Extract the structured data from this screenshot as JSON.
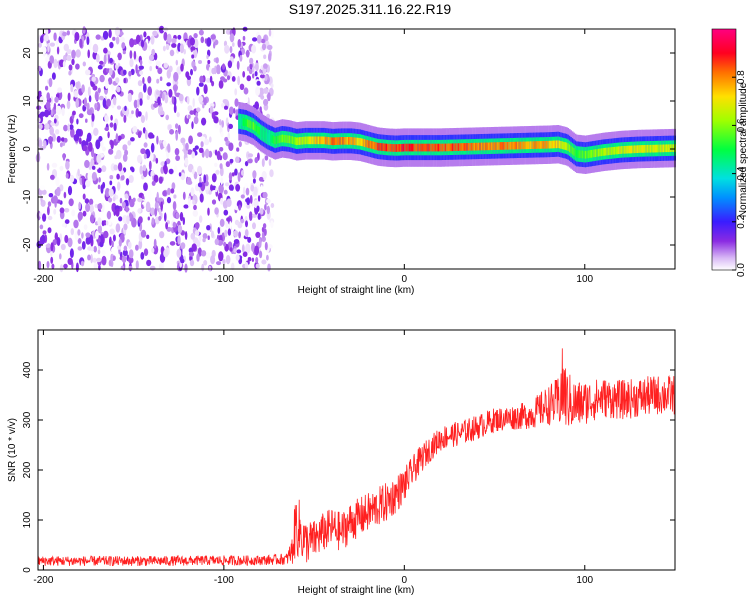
{
  "title": "S197.2025.311.16.22.R19",
  "chart_data": [
    {
      "type": "heatmap",
      "title": "S197.2025.311.16.22.R19",
      "xlabel": "Height of straight line (km)",
      "ylabel": "Frequency (Hz)",
      "xlim": [
        -203,
        150
      ],
      "ylim": [
        -25,
        25
      ],
      "x_ticks": [
        -200,
        -100,
        0,
        100
      ],
      "y_ticks": [
        -20,
        -10,
        0,
        10,
        20
      ],
      "colorbar": {
        "label": "Normalized spectral amplitude",
        "range": [
          0,
          1
        ],
        "ticks": [
          "0.0",
          "0.2",
          "0.4",
          "0.6",
          "0.8"
        ],
        "tick_values": [
          0.0,
          0.2,
          0.4,
          0.6,
          0.8
        ]
      },
      "noise_region": {
        "x_start": -203,
        "x_end": -73,
        "peak_amplitude": 0.15
      },
      "ridge": {
        "x": [
          -92,
          -88,
          -84,
          -80,
          -76,
          -72,
          -68,
          -64,
          -60,
          -55,
          -50,
          -45,
          -40,
          -35,
          -30,
          -25,
          -20,
          -15,
          -10,
          -5,
          0,
          5,
          10,
          20,
          30,
          40,
          50,
          60,
          70,
          80,
          85,
          90,
          95,
          100,
          110,
          120,
          130,
          140,
          150
        ],
        "freq": [
          5.8,
          5.5,
          4.8,
          3.5,
          2.5,
          1.8,
          2.2,
          2.0,
          1.6,
          1.8,
          1.8,
          1.8,
          1.6,
          1.7,
          1.7,
          1.5,
          1.0,
          0.5,
          0.3,
          0.2,
          0.3,
          0.3,
          0.3,
          0.3,
          0.4,
          0.5,
          0.6,
          0.7,
          0.8,
          0.9,
          1.0,
          0.5,
          -1.0,
          -1.2,
          -0.6,
          -0.2,
          0.0,
          0.1,
          0.2
        ],
        "amplitude": [
          0.45,
          0.55,
          0.6,
          0.5,
          0.45,
          0.55,
          0.6,
          0.6,
          0.65,
          0.7,
          0.75,
          0.8,
          0.85,
          0.85,
          0.8,
          0.75,
          0.85,
          0.9,
          0.9,
          0.92,
          0.92,
          0.9,
          0.9,
          0.9,
          0.88,
          0.85,
          0.85,
          0.85,
          0.82,
          0.8,
          0.75,
          0.65,
          0.55,
          0.6,
          0.65,
          0.7,
          0.72,
          0.7,
          0.7
        ]
      }
    },
    {
      "type": "line",
      "xlabel": "Height of straight line (km)",
      "ylabel": "SNR (10 * v/v)",
      "xlim": [
        -203,
        150
      ],
      "ylim": [
        0,
        480
      ],
      "x_ticks": [
        -200,
        -100,
        0,
        100
      ],
      "y_ticks": [
        0,
        100,
        200,
        300,
        400
      ],
      "color": "#ff2020",
      "series": [
        {
          "name": "SNR",
          "x": [
            -203,
            -190,
            -170,
            -150,
            -130,
            -110,
            -90,
            -75,
            -65,
            -62,
            -60,
            -55,
            -50,
            -45,
            -40,
            -35,
            -30,
            -25,
            -20,
            -15,
            -10,
            -5,
            0,
            5,
            10,
            15,
            20,
            25,
            30,
            40,
            50,
            60,
            70,
            75,
            80,
            85,
            88,
            90,
            95,
            100,
            110,
            120,
            130,
            140,
            150
          ],
          "y": [
            18,
            18,
            18,
            18,
            18,
            19,
            19,
            20,
            22,
            40,
            95,
            55,
            60,
            75,
            85,
            75,
            95,
            105,
            115,
            125,
            135,
            150,
            170,
            200,
            225,
            245,
            262,
            270,
            272,
            285,
            300,
            305,
            310,
            320,
            330,
            335,
            365,
            340,
            330,
            335,
            345,
            340,
            345,
            350,
            350
          ],
          "noise_amplitude": [
            10,
            10,
            10,
            10,
            10,
            10,
            10,
            10,
            12,
            30,
            70,
            45,
            40,
            40,
            40,
            40,
            40,
            40,
            40,
            40,
            40,
            38,
            35,
            30,
            28,
            25,
            25,
            25,
            25,
            25,
            25,
            25,
            28,
            35,
            40,
            50,
            90,
            60,
            50,
            45,
            40,
            40,
            40,
            40,
            40
          ]
        }
      ]
    }
  ]
}
